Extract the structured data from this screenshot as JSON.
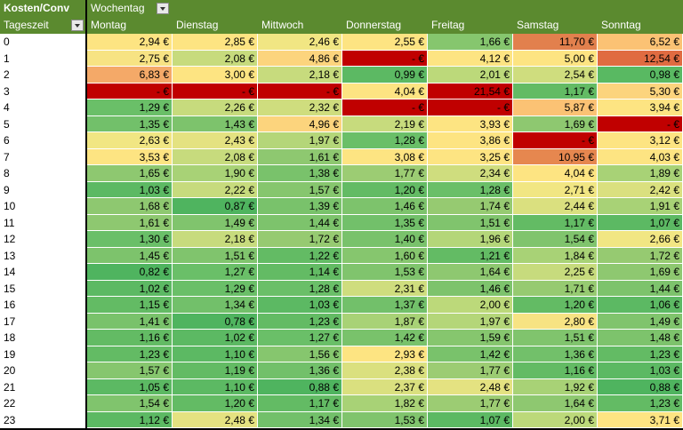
{
  "pivot": {
    "corner_title": "Kosten/Conv",
    "row_field": "Tageszeit",
    "column_field": "Wochentag",
    "days": [
      "Montag",
      "Dienstag",
      "Mittwoch",
      "Donnerstag",
      "Freitag",
      "Samstag",
      "Sonntag"
    ],
    "hours": [
      "0",
      "1",
      "2",
      "3",
      "4",
      "5",
      "6",
      "7",
      "8",
      "9",
      "10",
      "11",
      "12",
      "13",
      "14",
      "15",
      "16",
      "17",
      "18",
      "19",
      "20",
      "21",
      "22",
      "23"
    ],
    "rows": [
      [
        {
          "v": "2,94 €",
          "c": "#fde482"
        },
        {
          "v": "2,85 €",
          "c": "#fde482"
        },
        {
          "v": "2,46 €",
          "c": "#f1e683"
        },
        {
          "v": "2,55 €",
          "c": "#fde482"
        },
        {
          "v": "1,66 €",
          "c": "#86c66e"
        },
        {
          "v": "11,70 €",
          "c": "#e2804d"
        },
        {
          "v": "6,52 €",
          "c": "#fbc274"
        }
      ],
      [
        {
          "v": "2,75 €",
          "c": "#f7e383"
        },
        {
          "v": "2,08 €",
          "c": "#c7db7d"
        },
        {
          "v": "4,86 €",
          "c": "#fcd47d"
        },
        {
          "v": "-   €",
          "c": "#c00000"
        },
        {
          "v": "4,12 €",
          "c": "#fde482"
        },
        {
          "v": "5,00 €",
          "c": "#fde482"
        },
        {
          "v": "12,54 €",
          "c": "#e06b41"
        }
      ],
      [
        {
          "v": "6,83 €",
          "c": "#f4a968"
        },
        {
          "v": "3,00 €",
          "c": "#fde482"
        },
        {
          "v": "2,18 €",
          "c": "#c7db7d"
        },
        {
          "v": "0,99 €",
          "c": "#5cb963"
        },
        {
          "v": "2,01 €",
          "c": "#bcd97a"
        },
        {
          "v": "2,54 €",
          "c": "#cfdd7e"
        },
        {
          "v": "0,98 €",
          "c": "#59b962"
        }
      ],
      [
        {
          "v": "-   €",
          "c": "#c00000"
        },
        {
          "v": "-   €",
          "c": "#c00000"
        },
        {
          "v": "-   €",
          "c": "#c00000"
        },
        {
          "v": "4,04 €",
          "c": "#fde482"
        },
        {
          "v": "21,54 €",
          "c": "#c00000"
        },
        {
          "v": "1,17 €",
          "c": "#63bb64"
        },
        {
          "v": "5,30 €",
          "c": "#fcd47d"
        }
      ],
      [
        {
          "v": "1,29 €",
          "c": "#6abf68"
        },
        {
          "v": "2,26 €",
          "c": "#c7db7d"
        },
        {
          "v": "2,32 €",
          "c": "#cfdd7e"
        },
        {
          "v": "-   €",
          "c": "#c00000"
        },
        {
          "v": "-   €",
          "c": "#c00000"
        },
        {
          "v": "5,87 €",
          "c": "#fbc274"
        },
        {
          "v": "3,94 €",
          "c": "#fde482"
        }
      ],
      [
        {
          "v": "1,35 €",
          "c": "#72c06a"
        },
        {
          "v": "1,43 €",
          "c": "#7dc36c"
        },
        {
          "v": "4,96 €",
          "c": "#fcd47d"
        },
        {
          "v": "2,19 €",
          "c": "#c7db7d"
        },
        {
          "v": "3,93 €",
          "c": "#fde482"
        },
        {
          "v": "1,69 €",
          "c": "#8ec870"
        },
        {
          "v": "-   €",
          "c": "#c00000"
        }
      ],
      [
        {
          "v": "2,63 €",
          "c": "#f1e683"
        },
        {
          "v": "2,43 €",
          "c": "#e4e281"
        },
        {
          "v": "1,97 €",
          "c": "#b4d679"
        },
        {
          "v": "1,28 €",
          "c": "#6abf68"
        },
        {
          "v": "3,86 €",
          "c": "#fde482"
        },
        {
          "v": "-   €",
          "c": "#c00000"
        },
        {
          "v": "3,12 €",
          "c": "#fde482"
        }
      ],
      [
        {
          "v": "3,53 €",
          "c": "#fde482"
        },
        {
          "v": "2,08 €",
          "c": "#c7db7d"
        },
        {
          "v": "1,61 €",
          "c": "#8ec870"
        },
        {
          "v": "3,08 €",
          "c": "#fde482"
        },
        {
          "v": "3,25 €",
          "c": "#fde482"
        },
        {
          "v": "10,95 €",
          "c": "#e6874f"
        },
        {
          "v": "4,03 €",
          "c": "#fde482"
        }
      ],
      [
        {
          "v": "1,65 €",
          "c": "#8ec870"
        },
        {
          "v": "1,90 €",
          "c": "#a8d276"
        },
        {
          "v": "1,38 €",
          "c": "#79c26b"
        },
        {
          "v": "1,77 €",
          "c": "#9ccc73"
        },
        {
          "v": "2,34 €",
          "c": "#cfdd7e"
        },
        {
          "v": "4,04 €",
          "c": "#fde482"
        },
        {
          "v": "1,89 €",
          "c": "#a8d276"
        }
      ],
      [
        {
          "v": "1,03 €",
          "c": "#5cb963"
        },
        {
          "v": "2,22 €",
          "c": "#c7db7d"
        },
        {
          "v": "1,57 €",
          "c": "#86c66e"
        },
        {
          "v": "1,20 €",
          "c": "#63bb64"
        },
        {
          "v": "1,28 €",
          "c": "#6abf68"
        },
        {
          "v": "2,71 €",
          "c": "#f1e683"
        },
        {
          "v": "2,42 €",
          "c": "#dae07f"
        }
      ],
      [
        {
          "v": "1,68 €",
          "c": "#8ec870"
        },
        {
          "v": "0,87 €",
          "c": "#4fb45f"
        },
        {
          "v": "1,39 €",
          "c": "#79c26b"
        },
        {
          "v": "1,46 €",
          "c": "#7dc36c"
        },
        {
          "v": "1,74 €",
          "c": "#96ca71"
        },
        {
          "v": "2,44 €",
          "c": "#dae07f"
        },
        {
          "v": "1,91 €",
          "c": "#a8d276"
        }
      ],
      [
        {
          "v": "1,61 €",
          "c": "#8ec870"
        },
        {
          "v": "1,49 €",
          "c": "#80c46d"
        },
        {
          "v": "1,44 €",
          "c": "#7dc36c"
        },
        {
          "v": "1,35 €",
          "c": "#72c06a"
        },
        {
          "v": "1,51 €",
          "c": "#80c46d"
        },
        {
          "v": "1,17 €",
          "c": "#63bb64"
        },
        {
          "v": "1,07 €",
          "c": "#5cb963"
        }
      ],
      [
        {
          "v": "1,30 €",
          "c": "#6abf68"
        },
        {
          "v": "2,18 €",
          "c": "#c7db7d"
        },
        {
          "v": "1,72 €",
          "c": "#96ca71"
        },
        {
          "v": "1,40 €",
          "c": "#79c26b"
        },
        {
          "v": "1,96 €",
          "c": "#b4d679"
        },
        {
          "v": "1,54 €",
          "c": "#80c46d"
        },
        {
          "v": "2,66 €",
          "c": "#f1e683"
        }
      ],
      [
        {
          "v": "1,45 €",
          "c": "#7dc36c"
        },
        {
          "v": "1,51 €",
          "c": "#80c46d"
        },
        {
          "v": "1,22 €",
          "c": "#63bb64"
        },
        {
          "v": "1,60 €",
          "c": "#86c66e"
        },
        {
          "v": "1,21 €",
          "c": "#63bb64"
        },
        {
          "v": "1,84 €",
          "c": "#a8d276"
        },
        {
          "v": "1,72 €",
          "c": "#96ca71"
        }
      ],
      [
        {
          "v": "0,82 €",
          "c": "#4fb45f"
        },
        {
          "v": "1,27 €",
          "c": "#6abf68"
        },
        {
          "v": "1,14 €",
          "c": "#63bb64"
        },
        {
          "v": "1,53 €",
          "c": "#80c46d"
        },
        {
          "v": "1,64 €",
          "c": "#8ec870"
        },
        {
          "v": "2,25 €",
          "c": "#c7db7d"
        },
        {
          "v": "1,69 €",
          "c": "#8ec870"
        }
      ],
      [
        {
          "v": "1,02 €",
          "c": "#5cb963"
        },
        {
          "v": "1,29 €",
          "c": "#6abf68"
        },
        {
          "v": "1,28 €",
          "c": "#6abf68"
        },
        {
          "v": "2,31 €",
          "c": "#cfdd7e"
        },
        {
          "v": "1,46 €",
          "c": "#7dc36c"
        },
        {
          "v": "1,71 €",
          "c": "#96ca71"
        },
        {
          "v": "1,44 €",
          "c": "#7dc36c"
        }
      ],
      [
        {
          "v": "1,15 €",
          "c": "#63bb64"
        },
        {
          "v": "1,34 €",
          "c": "#72c06a"
        },
        {
          "v": "1,03 €",
          "c": "#5cb963"
        },
        {
          "v": "1,37 €",
          "c": "#72c06a"
        },
        {
          "v": "2,00 €",
          "c": "#bcd97a"
        },
        {
          "v": "1,20 €",
          "c": "#63bb64"
        },
        {
          "v": "1,06 €",
          "c": "#5cb963"
        }
      ],
      [
        {
          "v": "1,41 €",
          "c": "#79c26b"
        },
        {
          "v": "0,78 €",
          "c": "#4fb45f"
        },
        {
          "v": "1,23 €",
          "c": "#63bb64"
        },
        {
          "v": "1,87 €",
          "c": "#a8d276"
        },
        {
          "v": "1,97 €",
          "c": "#b4d679"
        },
        {
          "v": "2,80 €",
          "c": "#f7e383"
        },
        {
          "v": "1,49 €",
          "c": "#80c46d"
        }
      ],
      [
        {
          "v": "1,16 €",
          "c": "#63bb64"
        },
        {
          "v": "1,02 €",
          "c": "#5cb963"
        },
        {
          "v": "1,27 €",
          "c": "#6abf68"
        },
        {
          "v": "1,42 €",
          "c": "#79c26b"
        },
        {
          "v": "1,59 €",
          "c": "#86c66e"
        },
        {
          "v": "1,51 €",
          "c": "#80c46d"
        },
        {
          "v": "1,48 €",
          "c": "#7dc36c"
        }
      ],
      [
        {
          "v": "1,23 €",
          "c": "#63bb64"
        },
        {
          "v": "1,10 €",
          "c": "#5cb963"
        },
        {
          "v": "1,56 €",
          "c": "#86c66e"
        },
        {
          "v": "2,93 €",
          "c": "#fde482"
        },
        {
          "v": "1,42 €",
          "c": "#79c26b"
        },
        {
          "v": "1,36 €",
          "c": "#72c06a"
        },
        {
          "v": "1,23 €",
          "c": "#63bb64"
        }
      ],
      [
        {
          "v": "1,57 €",
          "c": "#86c66e"
        },
        {
          "v": "1,19 €",
          "c": "#63bb64"
        },
        {
          "v": "1,36 €",
          "c": "#72c06a"
        },
        {
          "v": "2,38 €",
          "c": "#dae07f"
        },
        {
          "v": "1,77 €",
          "c": "#9ccc73"
        },
        {
          "v": "1,16 €",
          "c": "#63bb64"
        },
        {
          "v": "1,03 €",
          "c": "#5cb963"
        }
      ],
      [
        {
          "v": "1,05 €",
          "c": "#5cb963"
        },
        {
          "v": "1,10 €",
          "c": "#5cb963"
        },
        {
          "v": "0,88 €",
          "c": "#4fb45f"
        },
        {
          "v": "2,37 €",
          "c": "#dae07f"
        },
        {
          "v": "2,48 €",
          "c": "#e4e281"
        },
        {
          "v": "1,92 €",
          "c": "#a8d276"
        },
        {
          "v": "0,88 €",
          "c": "#4fb45f"
        }
      ],
      [
        {
          "v": "1,54 €",
          "c": "#80c46d"
        },
        {
          "v": "1,20 €",
          "c": "#63bb64"
        },
        {
          "v": "1,17 €",
          "c": "#63bb64"
        },
        {
          "v": "1,82 €",
          "c": "#a8d276"
        },
        {
          "v": "1,77 €",
          "c": "#9ccc73"
        },
        {
          "v": "1,64 €",
          "c": "#8ec870"
        },
        {
          "v": "1,23 €",
          "c": "#63bb64"
        }
      ],
      [
        {
          "v": "1,12 €",
          "c": "#5cb963"
        },
        {
          "v": "2,48 €",
          "c": "#e4e281"
        },
        {
          "v": "1,34 €",
          "c": "#72c06a"
        },
        {
          "v": "1,53 €",
          "c": "#80c46d"
        },
        {
          "v": "1,07 €",
          "c": "#5cb963"
        },
        {
          "v": "2,00 €",
          "c": "#bcd97a"
        },
        {
          "v": "3,71 €",
          "c": "#fde482"
        }
      ]
    ]
  }
}
